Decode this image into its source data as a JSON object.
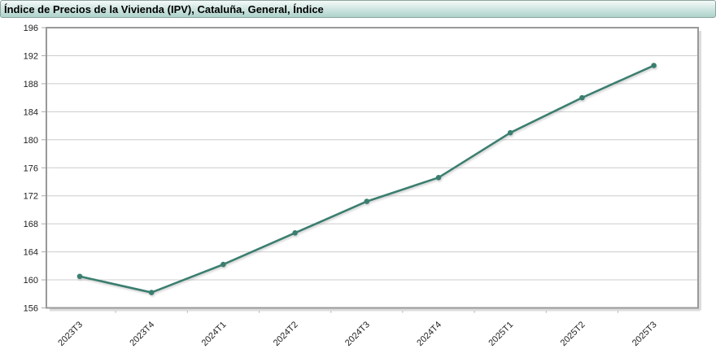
{
  "header": {
    "title": "Índice de Precios de la Vivienda (IPV), Cataluña, General, Índice"
  },
  "colors": {
    "series_line": "#3A7E6F",
    "grid_line": "#CCCCCC",
    "plot_border": "#999999",
    "plot_shadow": "#DCDCDC",
    "tick": "#AAAAAA",
    "axis_text": "#222222",
    "title_text": "#000000",
    "title_bar_gradient_top": "#F4FAF8",
    "title_bar_gradient_bottom": "#ACD2CA",
    "title_bar_border": "#8FA39E"
  },
  "chart_data": {
    "type": "line",
    "title": "Índice de Precios de la Vivienda (IPV), Cataluña, General, Índice",
    "categories": [
      "2023T3",
      "2023T4",
      "2024T1",
      "2024T2",
      "2024T3",
      "2024T4",
      "2025T1",
      "2025T2",
      "2025T3"
    ],
    "values": [
      160.5,
      158.2,
      162.2,
      166.7,
      171.2,
      174.6,
      181.0,
      186.0,
      190.6
    ],
    "xlabel": "",
    "ylabel": "",
    "ylim": [
      156,
      196
    ],
    "yticks": [
      156,
      160,
      164,
      168,
      172,
      176,
      180,
      184,
      188,
      192,
      196
    ],
    "grid": true,
    "legend": "none",
    "marker": "circle",
    "x_label_rotation_deg": -45
  }
}
